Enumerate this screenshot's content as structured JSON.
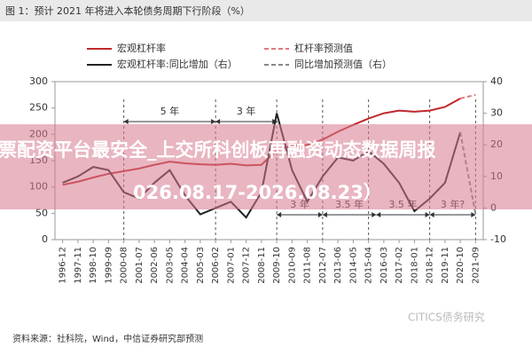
{
  "chart_data": {
    "type": "line",
    "title": "图 1：预计 2021 年将进入本轮债务周期下行阶段（%）",
    "categories": [
      "1996-12",
      "1997-11",
      "1998-10",
      "1999-09",
      "2000-08",
      "2001-07",
      "2002-06",
      "2003-05",
      "2004-04",
      "2005-03",
      "2006-02",
      "2007-01",
      "2007-12",
      "2008-11",
      "2009-10",
      "2010-09",
      "2011-08",
      "2012-07",
      "2013-06",
      "2014-05",
      "2015-04",
      "2016-03",
      "2017-02",
      "2018-01",
      "2018-12",
      "2019-11",
      "2020-10",
      "2021-09"
    ],
    "series": [
      {
        "name": "宏观杠杆率",
        "color": "#c0282d",
        "dashed": false,
        "values": [
          104,
          110,
          118,
          125,
          130,
          135,
          142,
          148,
          145,
          143,
          142,
          144,
          141,
          142,
          170,
          178,
          180,
          190,
          205,
          218,
          230,
          240,
          245,
          243,
          245,
          252,
          268,
          null
        ]
      },
      {
        "name": "杠杆率预测值",
        "color": "#e07a80",
        "dashed": true,
        "values": [
          null,
          null,
          null,
          null,
          null,
          null,
          null,
          null,
          null,
          null,
          null,
          null,
          null,
          null,
          null,
          null,
          null,
          null,
          null,
          null,
          null,
          null,
          null,
          null,
          null,
          null,
          268,
          275
        ]
      },
      {
        "name": "宏观杠杆率:同比增加（右）",
        "color": "#222222",
        "dashed": false,
        "axis": "y2",
        "values": [
          8,
          10,
          13,
          12,
          5,
          3,
          8,
          12,
          4,
          -2,
          0,
          2,
          -3,
          5,
          30,
          12,
          2,
          10,
          16,
          15,
          18,
          14,
          8,
          -1,
          3,
          8,
          24,
          null
        ]
      },
      {
        "name": "同比增加预测值（右）",
        "color": "#888888",
        "dashed": true,
        "axis": "y2",
        "values": [
          null,
          null,
          null,
          null,
          null,
          null,
          null,
          null,
          null,
          null,
          null,
          null,
          null,
          null,
          null,
          null,
          null,
          null,
          null,
          null,
          null,
          null,
          null,
          null,
          null,
          null,
          24,
          -2
        ]
      }
    ],
    "ylim": [
      0,
      300
    ],
    "yticks": [
      0,
      50,
      100,
      150,
      200,
      250,
      300
    ],
    "y2lim": [
      -10,
      40
    ],
    "y2ticks": [
      -10,
      0,
      10,
      20,
      30,
      40
    ],
    "annotations": [
      "5 年",
      "3 年",
      "3 年",
      "3.5 年",
      "3.5 年",
      "3 年?"
    ],
    "source": "资料来源：社科院，Wind，中信证券研究部预测",
    "watermark": "CITICS债务研究",
    "overlay_text": [
      "票配资平台最安全_上交所科创板再融资动态数据周报",
      "026.08.17-2026.08.23）"
    ]
  }
}
